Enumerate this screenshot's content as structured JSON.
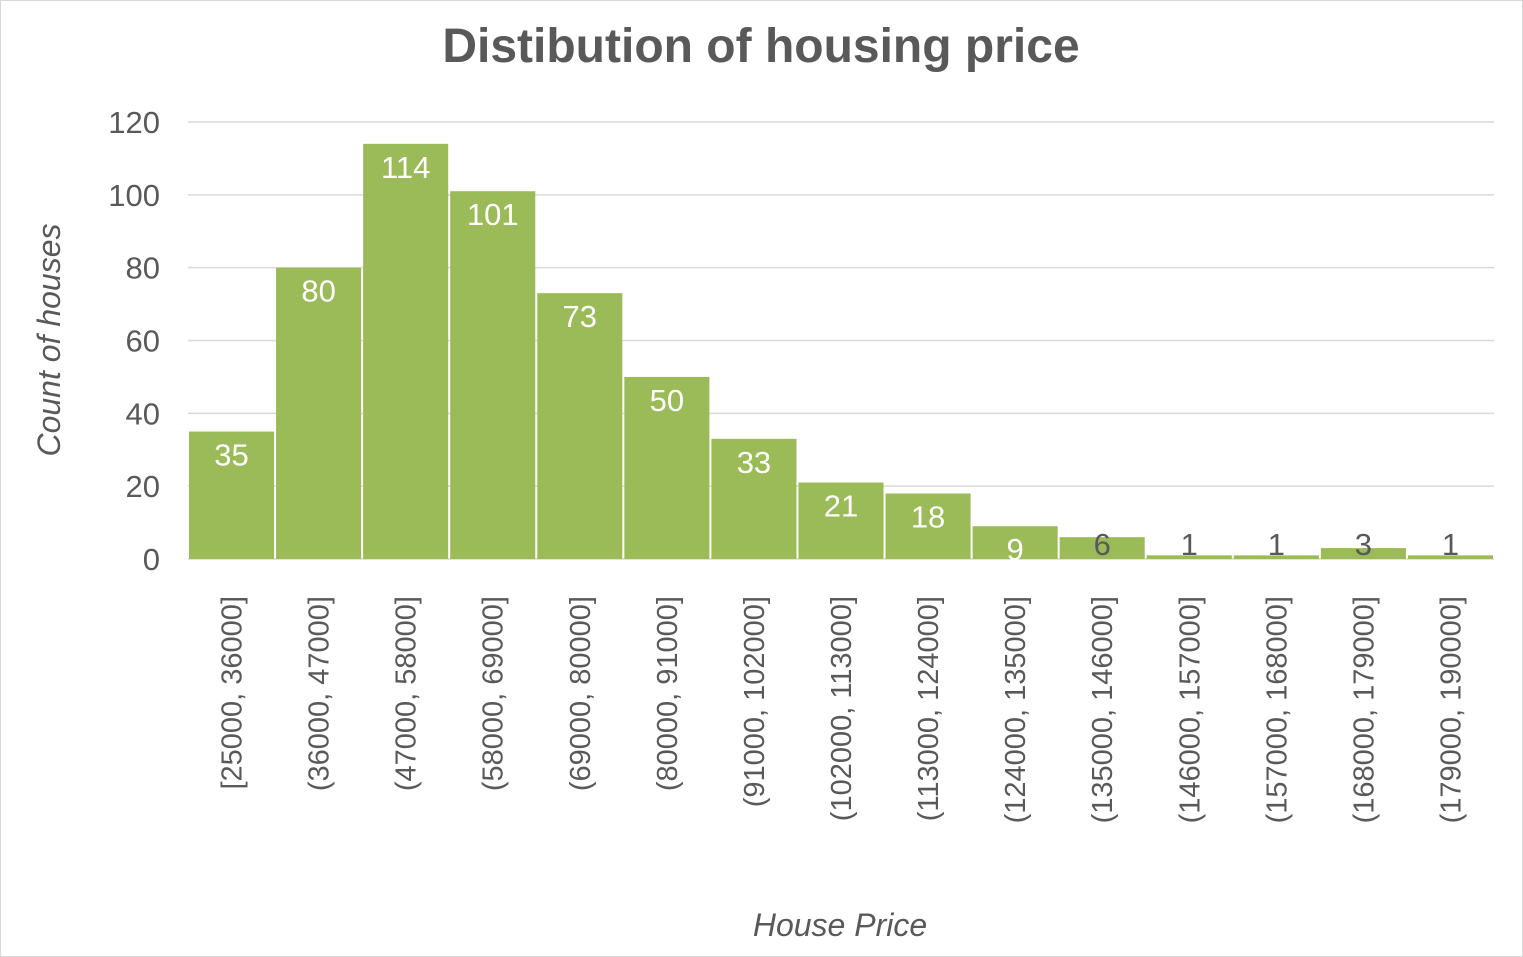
{
  "chart_data": {
    "type": "bar",
    "title": "Distibution of housing price",
    "xlabel": "House Price",
    "ylabel": "Count of houses",
    "ylim": [
      0,
      120
    ],
    "yticks": [
      0,
      20,
      40,
      60,
      80,
      100,
      120
    ],
    "grid": true,
    "bar_color": "#9bbb59",
    "label_color_inside": "#ffffff",
    "label_color_outside": "#595959",
    "categories": [
      "[25000, 36000]",
      "(36000, 47000]",
      "(47000, 58000]",
      "(58000, 69000]",
      "(69000, 80000]",
      "(80000, 91000]",
      "(91000, 102000]",
      "(102000, 113000]",
      "(113000, 124000]",
      "(124000, 135000]",
      "(135000, 146000]",
      "(146000, 157000]",
      "(157000, 168000]",
      "(168000, 179000]",
      "(179000, 190000]"
    ],
    "values": [
      35,
      80,
      114,
      101,
      73,
      50,
      33,
      21,
      18,
      9,
      6,
      1,
      1,
      3,
      1
    ]
  }
}
